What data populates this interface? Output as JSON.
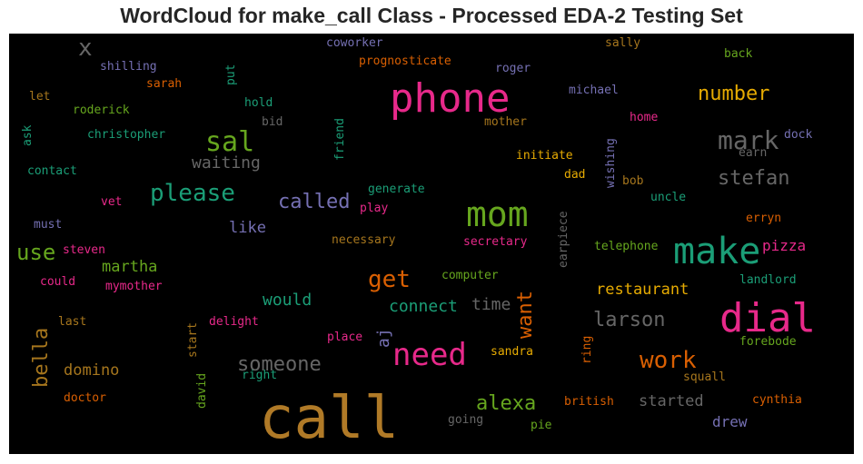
{
  "title": "WordCloud for make_call Class - Processed EDA-2 Testing Set",
  "words": {
    "call": {
      "text": "call",
      "color": "#b07a27"
    },
    "phone": {
      "text": "phone",
      "color": "#e7298a"
    },
    "make": {
      "text": "make",
      "color": "#1b9e77"
    },
    "dial": {
      "text": "dial",
      "color": "#e7298a"
    },
    "mom": {
      "text": "mom",
      "color": "#66a61e"
    },
    "need": {
      "text": "need",
      "color": "#e7298a"
    },
    "sal": {
      "text": "sal",
      "color": "#66a61e"
    },
    "please": {
      "text": "please",
      "color": "#1b9e77"
    },
    "mark": {
      "text": "mark",
      "color": "#666666"
    },
    "x": {
      "text": "x",
      "color": "#666666"
    },
    "number": {
      "text": "number",
      "color": "#e6ab02"
    },
    "called": {
      "text": "called",
      "color": "#7570b3"
    },
    "stefan": {
      "text": "stefan",
      "color": "#666666"
    },
    "get": {
      "text": "get",
      "color": "#d95f02"
    },
    "use": {
      "text": "use",
      "color": "#66a61e"
    },
    "want": {
      "text": "want",
      "color": "#d95f02"
    },
    "work": {
      "text": "work",
      "color": "#d95f02"
    },
    "alexa": {
      "text": "alexa",
      "color": "#66a61e"
    },
    "larson": {
      "text": "larson",
      "color": "#666666"
    },
    "someone": {
      "text": "someone",
      "color": "#666666"
    },
    "bella": {
      "text": "bella",
      "color": "#a6761d"
    },
    "waiting": {
      "text": "waiting",
      "color": "#666666"
    },
    "pizza": {
      "text": "pizza",
      "color": "#e7298a"
    },
    "restaurant": {
      "text": "restaurant",
      "color": "#e6ab02"
    },
    "connect": {
      "text": "connect",
      "color": "#1b9e77"
    },
    "would": {
      "text": "would",
      "color": "#1b9e77"
    },
    "martha": {
      "text": "martha",
      "color": "#66a61e"
    },
    "domino": {
      "text": "domino",
      "color": "#a6761d"
    },
    "started": {
      "text": "started",
      "color": "#666666"
    },
    "time": {
      "text": "time",
      "color": "#666666"
    },
    "like": {
      "text": "like",
      "color": "#7570b3"
    },
    "drew": {
      "text": "drew",
      "color": "#7570b3"
    },
    "aj": {
      "text": "aj",
      "color": "#7570b3"
    },
    "coworker": {
      "text": "coworker",
      "color": "#7570b3"
    },
    "sally": {
      "text": "sally",
      "color": "#a6761d"
    },
    "shilling": {
      "text": "shilling",
      "color": "#7570b3"
    },
    "prognosticate": {
      "text": "prognosticate",
      "color": "#d95f02"
    },
    "roger": {
      "text": "roger",
      "color": "#7570b3"
    },
    "back": {
      "text": "back",
      "color": "#66a61e"
    },
    "put": {
      "text": "put",
      "color": "#1b9e77"
    },
    "sarah": {
      "text": "sarah",
      "color": "#d95f02"
    },
    "let": {
      "text": "let",
      "color": "#a6761d"
    },
    "michael": {
      "text": "michael",
      "color": "#7570b3"
    },
    "hold": {
      "text": "hold",
      "color": "#1b9e77"
    },
    "roderick": {
      "text": "roderick",
      "color": "#66a61e"
    },
    "mother": {
      "text": "mother",
      "color": "#a6761d"
    },
    "home": {
      "text": "home",
      "color": "#e7298a"
    },
    "bid": {
      "text": "bid",
      "color": "#666666"
    },
    "ask": {
      "text": "ask",
      "color": "#1b9e77"
    },
    "christopher": {
      "text": "christopher",
      "color": "#1b9e77"
    },
    "friend": {
      "text": "friend",
      "color": "#1b9e77"
    },
    "dock": {
      "text": "dock",
      "color": "#7570b3"
    },
    "earn": {
      "text": "earn",
      "color": "#666666"
    },
    "wishing": {
      "text": "wishing",
      "color": "#7570b3"
    },
    "initiate": {
      "text": "initiate",
      "color": "#e6ab02"
    },
    "dad": {
      "text": "dad",
      "color": "#e6ab02"
    },
    "bob": {
      "text": "bob",
      "color": "#a6761d"
    },
    "contact": {
      "text": "contact",
      "color": "#1b9e77"
    },
    "generate": {
      "text": "generate",
      "color": "#1b9e77"
    },
    "uncle": {
      "text": "uncle",
      "color": "#1b9e77"
    },
    "vet": {
      "text": "vet",
      "color": "#e7298a"
    },
    "play": {
      "text": "play",
      "color": "#e7298a"
    },
    "must": {
      "text": "must",
      "color": "#7570b3"
    },
    "earpiece": {
      "text": "earpiece",
      "color": "#666666"
    },
    "erryn": {
      "text": "erryn",
      "color": "#d95f02"
    },
    "necessary": {
      "text": "necessary",
      "color": "#a6761d"
    },
    "secretary": {
      "text": "secretary",
      "color": "#e7298a"
    },
    "telephone": {
      "text": "telephone",
      "color": "#66a61e"
    },
    "steven": {
      "text": "steven",
      "color": "#e7298a"
    },
    "computer": {
      "text": "computer",
      "color": "#66a61e"
    },
    "landlord": {
      "text": "landlord",
      "color": "#1b9e77"
    },
    "could": {
      "text": "could",
      "color": "#e7298a"
    },
    "mymother": {
      "text": "mymother",
      "color": "#e7298a"
    },
    "last": {
      "text": "last",
      "color": "#a6761d"
    },
    "start": {
      "text": "start",
      "color": "#a6761d"
    },
    "delight": {
      "text": "delight",
      "color": "#e7298a"
    },
    "place": {
      "text": "place",
      "color": "#e7298a"
    },
    "forebode": {
      "text": "forebode",
      "color": "#66a61e"
    },
    "sandra": {
      "text": "sandra",
      "color": "#e6ab02"
    },
    "ring": {
      "text": "ring",
      "color": "#d95f02"
    },
    "right": {
      "text": "right",
      "color": "#1b9e77"
    },
    "david": {
      "text": "david",
      "color": "#66a61e"
    },
    "squall": {
      "text": "squall",
      "color": "#a6761d"
    },
    "doctor": {
      "text": "doctor",
      "color": "#d95f02"
    },
    "british": {
      "text": "british",
      "color": "#d95f02"
    },
    "cynthia": {
      "text": "cynthia",
      "color": "#d95f02"
    },
    "going": {
      "text": "going",
      "color": "#666666"
    },
    "pie": {
      "text": "pie",
      "color": "#66a61e"
    }
  }
}
